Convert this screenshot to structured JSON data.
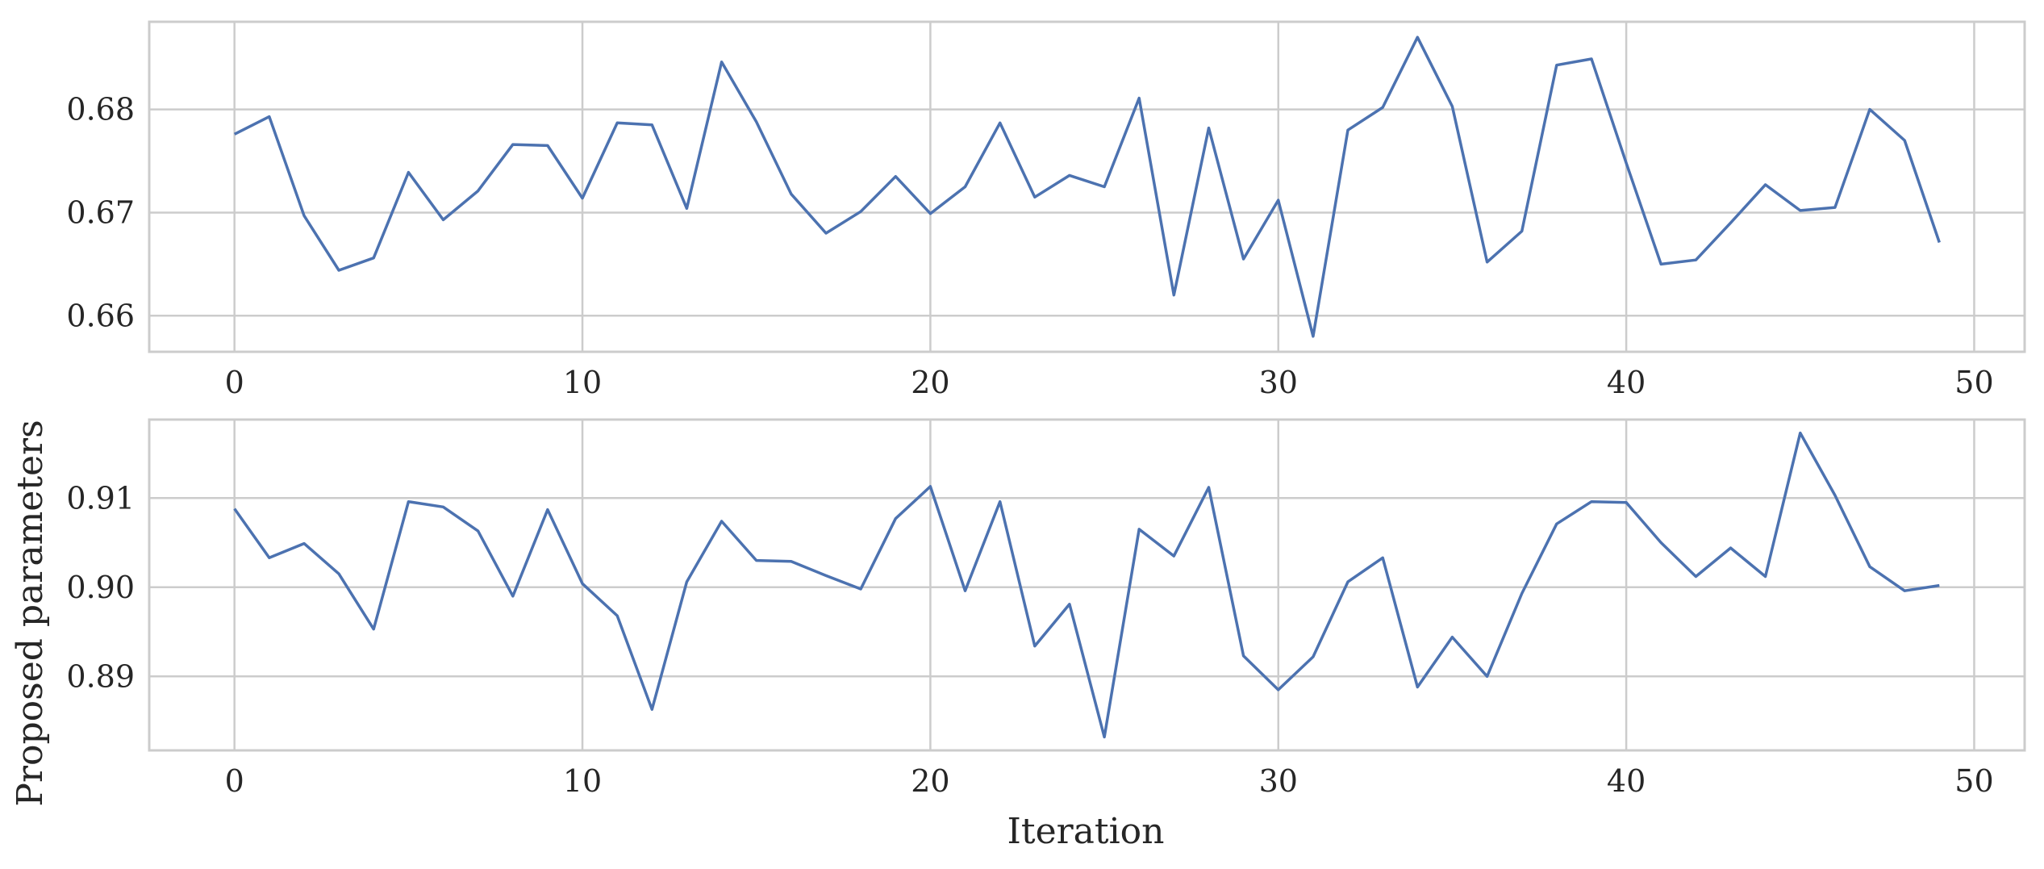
{
  "chart_data": [
    {
      "type": "line",
      "title": "",
      "xlabel": "",
      "ylabel": "",
      "xlim": [
        -2.45,
        51.45
      ],
      "ylim": [
        0.6565,
        0.6885
      ],
      "x_ticks": [
        0,
        10,
        20,
        30,
        40,
        50
      ],
      "y_ticks": [
        0.66,
        0.67,
        0.68
      ],
      "y_tick_labels": [
        "0.66",
        "0.67",
        "0.68"
      ],
      "grid": true,
      "color": "#4c72b0",
      "x": [
        0,
        1,
        2,
        3,
        4,
        5,
        6,
        7,
        8,
        9,
        10,
        11,
        12,
        13,
        14,
        15,
        16,
        17,
        18,
        19,
        20,
        21,
        22,
        23,
        24,
        25,
        26,
        27,
        28,
        29,
        30,
        31,
        32,
        33,
        34,
        35,
        36,
        37,
        38,
        39,
        40,
        41,
        42,
        43,
        44,
        45,
        46,
        47,
        48,
        49
      ],
      "values": [
        0.6776,
        0.6793,
        0.6697,
        0.6644,
        0.6656,
        0.6739,
        0.6693,
        0.6721,
        0.6766,
        0.6765,
        0.6714,
        0.6787,
        0.6785,
        0.6704,
        0.6846,
        0.6788,
        0.6718,
        0.668,
        0.6701,
        0.6735,
        0.6699,
        0.6725,
        0.6787,
        0.6715,
        0.6736,
        0.6725,
        0.6811,
        0.662,
        0.6782,
        0.6655,
        0.6712,
        0.658,
        0.678,
        0.6802,
        0.687,
        0.6803,
        0.6652,
        0.6682,
        0.6843,
        0.6849,
        0.6748,
        0.665,
        0.6654,
        0.669,
        0.6727,
        0.6702,
        0.6705,
        0.68,
        0.677,
        0.6671
      ]
    },
    {
      "type": "line",
      "title": "",
      "xlabel": "Iteration",
      "ylabel": "Proposed parameters",
      "xlim": [
        -2.45,
        51.45
      ],
      "ylim": [
        0.8817,
        0.9188
      ],
      "x_ticks": [
        0,
        10,
        20,
        30,
        40,
        50
      ],
      "y_ticks": [
        0.89,
        0.9,
        0.91
      ],
      "y_tick_labels": [
        "0.89",
        "0.90",
        "0.91"
      ],
      "grid": true,
      "color": "#4c72b0",
      "x": [
        0,
        1,
        2,
        3,
        4,
        5,
        6,
        7,
        8,
        9,
        10,
        11,
        12,
        13,
        14,
        15,
        16,
        17,
        18,
        19,
        20,
        21,
        22,
        23,
        24,
        25,
        26,
        27,
        28,
        29,
        30,
        31,
        32,
        33,
        34,
        35,
        36,
        37,
        38,
        39,
        40,
        41,
        42,
        43,
        44,
        45,
        46,
        47,
        48,
        49
      ],
      "values": [
        0.9088,
        0.9033,
        0.9049,
        0.9015,
        0.8953,
        0.9096,
        0.909,
        0.9063,
        0.899,
        0.9087,
        0.9004,
        0.8968,
        0.8863,
        0.9006,
        0.9074,
        0.903,
        0.9029,
        0.9013,
        0.8998,
        0.9077,
        0.9113,
        0.8996,
        0.9096,
        0.8934,
        0.8981,
        0.8832,
        0.9065,
        0.9035,
        0.9112,
        0.8923,
        0.8885,
        0.8922,
        0.9006,
        0.9033,
        0.8888,
        0.8944,
        0.89,
        0.8993,
        0.9071,
        0.9096,
        0.9095,
        0.905,
        0.9012,
        0.9044,
        0.9012,
        0.9173,
        0.9103,
        0.9023,
        0.8996,
        0.9002
      ]
    }
  ]
}
